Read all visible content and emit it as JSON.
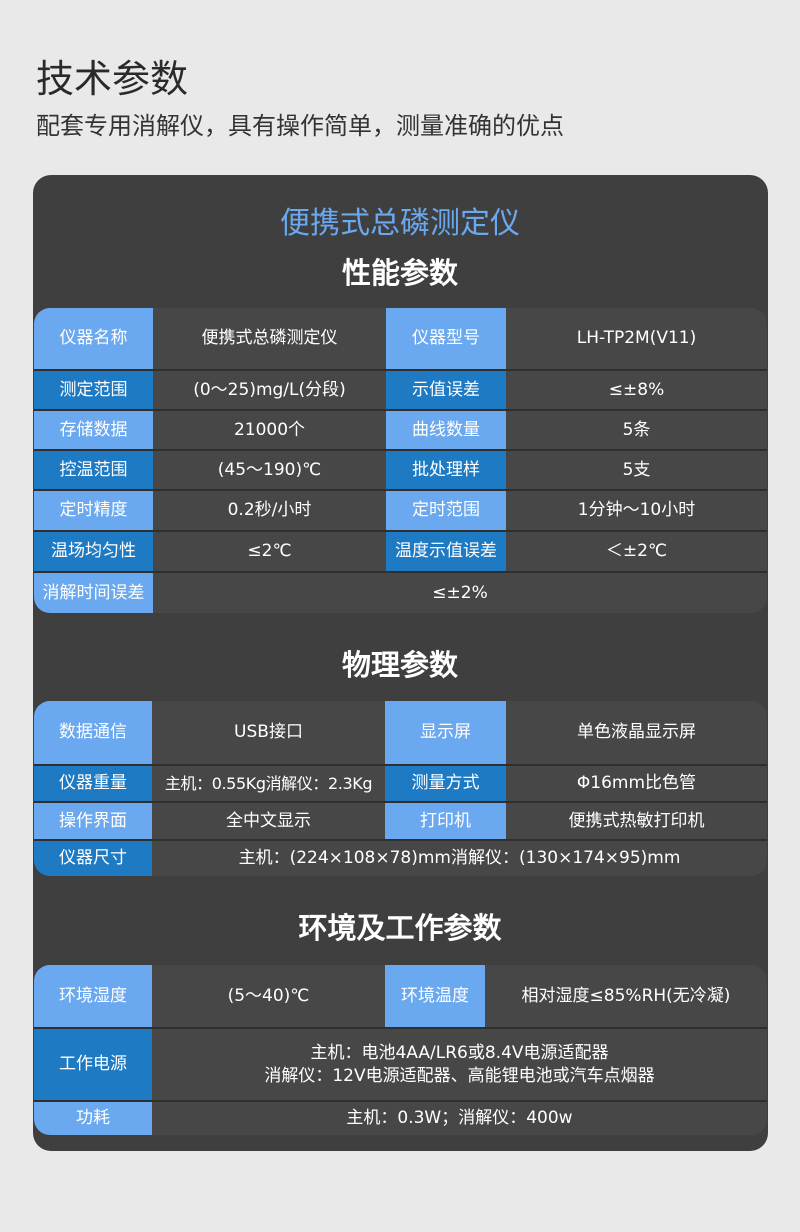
{
  "header": {
    "title": "技术参数",
    "subtitle": "配套专用消解仪，具有操作简单，测量准确的优点"
  },
  "card": {
    "product": "便携式总磷测定仪"
  },
  "colors": {
    "light_label": "#6aa8f0",
    "dark_label": "#1f7ac4",
    "card": "#3f3f3f"
  },
  "performance": {
    "title": "性能参数",
    "rows": [
      [
        "仪器名称",
        "便携式总磷测定仪",
        "仪器型号",
        "LH-TP2M(V11)"
      ],
      [
        "测定范围",
        "(0～25)mg/L(分段)",
        "示值误差",
        "≤±8%"
      ],
      [
        "存储数据",
        "21000个",
        "曲线数量",
        "5条"
      ],
      [
        "控温范围",
        "(45～190)℃",
        "批处理样",
        "5支"
      ],
      [
        "定时精度",
        "0.2秒/小时",
        "定时范围",
        "1分钟～10小时"
      ],
      [
        "温场均匀性",
        "≤2℃",
        "温度示值误差",
        "＜±2℃"
      ],
      [
        "消解时间误差",
        "≤±2%"
      ]
    ]
  },
  "physical": {
    "title": "物理参数",
    "rows": [
      [
        "数据通信",
        "USB接口",
        "显示屏",
        "单色液晶显示屏"
      ],
      [
        "仪器重量",
        "主机：0.55Kg消解仪：2.3Kg",
        "测量方式",
        "Φ16mm比色管"
      ],
      [
        "操作界面",
        "全中文显示",
        "打印机",
        "便携式热敏打印机"
      ],
      [
        "仪器尺寸",
        "主机：(224×108×78)mm消解仪：(130×174×95)mm"
      ]
    ]
  },
  "environment": {
    "title": "环境及工作参数",
    "rows": [
      [
        "环境湿度",
        "(5～40)℃",
        "环境温度",
        "相对湿度≤85%RH(无冷凝)"
      ],
      [
        "工作电源",
        "主机：电池4AA/LR6或8.4V电源适配器",
        "消解仪：12V电源适配器、高能锂电池或汽车点烟器"
      ],
      [
        "功耗",
        "主机：0.3W；消解仪：400w"
      ]
    ]
  }
}
